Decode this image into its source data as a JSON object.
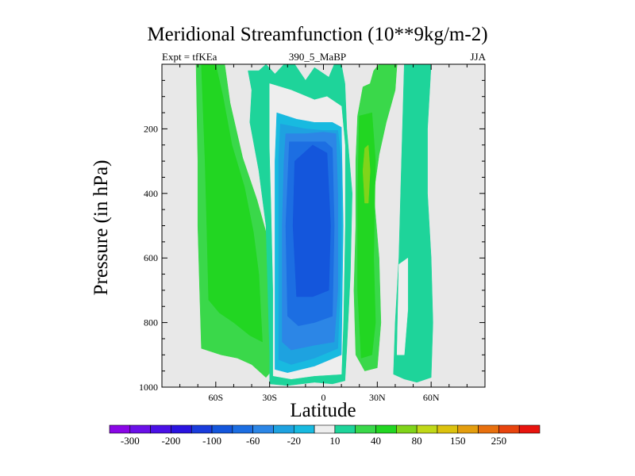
{
  "chart_data": {
    "type": "heatmap",
    "title": "Meridional Streamfunction (10**9kg/m-2)",
    "left_label": "Expt = tfKEa",
    "center_label": "390_5_MaBP",
    "right_label": "JJA",
    "xlabel": "Latitude",
    "ylabel": "Pressure (in hPa)",
    "xlim": [
      -90,
      90
    ],
    "ylim": [
      1000,
      0
    ],
    "x_ticks": [
      -60,
      -30,
      0,
      30,
      60
    ],
    "x_tick_labels": [
      "60S",
      "30S",
      "0",
      "30N",
      "60N"
    ],
    "y_ticks": [
      200,
      400,
      600,
      800,
      1000
    ],
    "y_tick_labels": [
      "200",
      "400",
      "600",
      "800",
      "1000"
    ],
    "missing_color": "#e8e8e8",
    "colorbar": {
      "levels": [
        -350,
        -300,
        -250,
        -200,
        -150,
        -100,
        -80,
        -60,
        -40,
        -20,
        -10,
        10,
        20,
        40,
        60,
        80,
        100,
        150,
        200,
        250
      ],
      "tick_labels": [
        "-300",
        "-200",
        "-100",
        "-60",
        "-20",
        "10",
        "40",
        "80",
        "150",
        "250"
      ],
      "colors": [
        "#8a06e6",
        "#6a10e8",
        "#4a10e6",
        "#2a14e0",
        "#1a3cdc",
        "#1456dc",
        "#1c6ee2",
        "#2c86e6",
        "#1ea2e0",
        "#18bae0",
        "#eeeeee",
        "#1ed49a",
        "#3ad84a",
        "#22d622",
        "#80d41a",
        "#c0d818",
        "#dcc20e",
        "#e49e0e",
        "#e8700e",
        "#e8440e",
        "#e8140e"
      ]
    },
    "regions": [
      {
        "value": 15,
        "polygon": [
          [
            -71,
            0
          ],
          [
            -55,
            0
          ],
          [
            -52,
            120
          ],
          [
            -45,
            290
          ],
          [
            -37,
            420
          ],
          [
            -31,
            540
          ],
          [
            -29,
            660
          ],
          [
            -28,
            800
          ],
          [
            -26,
            930
          ],
          [
            -32,
            970
          ],
          [
            -40,
            930
          ],
          [
            -48,
            910
          ],
          [
            -57,
            900
          ],
          [
            -68,
            880
          ],
          [
            -69,
            700
          ],
          [
            -70,
            500
          ],
          [
            -70,
            300
          ]
        ]
      },
      {
        "value": 30,
        "polygon": [
          [
            -68,
            0
          ],
          [
            -60,
            0
          ],
          [
            -56,
            100
          ],
          [
            -51,
            250
          ],
          [
            -44,
            380
          ],
          [
            -39,
            520
          ],
          [
            -36,
            650
          ],
          [
            -35,
            760
          ],
          [
            -34,
            860
          ],
          [
            -41,
            840
          ],
          [
            -50,
            800
          ],
          [
            -58,
            770
          ],
          [
            -64,
            730
          ],
          [
            -65,
            500
          ],
          [
            -66,
            300
          ]
        ]
      },
      {
        "value": -10,
        "polygon": [
          [
            -42,
            20
          ],
          [
            -36,
            20
          ],
          [
            -32,
            0
          ],
          [
            -27,
            30
          ],
          [
            -22,
            0
          ],
          [
            -16,
            0
          ],
          [
            -10,
            50
          ],
          [
            -5,
            10
          ],
          [
            3,
            40
          ],
          [
            6,
            0
          ],
          [
            10,
            0
          ],
          [
            12,
            60
          ],
          [
            13,
            200
          ],
          [
            16,
            400
          ],
          [
            15,
            650
          ],
          [
            13,
            880
          ],
          [
            12,
            980
          ],
          [
            5,
            990
          ],
          [
            -5,
            985
          ],
          [
            -20,
            995
          ],
          [
            -30,
            990
          ],
          [
            -30,
            900
          ],
          [
            -31,
            700
          ],
          [
            -32,
            500
          ],
          [
            -36,
            330
          ],
          [
            -41,
            180
          ],
          [
            -40,
            80
          ]
        ]
      },
      {
        "value": -20,
        "polygon": [
          [
            -30,
            60
          ],
          [
            -18,
            80
          ],
          [
            -5,
            110
          ],
          [
            2,
            100
          ],
          [
            10,
            130
          ],
          [
            12,
            250
          ],
          [
            12,
            500
          ],
          [
            11,
            800
          ],
          [
            10,
            960
          ],
          [
            -5,
            965
          ],
          [
            -18,
            975
          ],
          [
            -28,
            965
          ],
          [
            -28,
            700
          ],
          [
            -29,
            450
          ],
          [
            -30,
            250
          ]
        ]
      },
      {
        "value": -40,
        "polygon": [
          [
            -26,
            150
          ],
          [
            -15,
            170
          ],
          [
            -5,
            180
          ],
          [
            5,
            180
          ],
          [
            10,
            195
          ],
          [
            11,
            500
          ],
          [
            10,
            900
          ],
          [
            -5,
            935
          ],
          [
            -20,
            955
          ],
          [
            -27,
            945
          ],
          [
            -27,
            600
          ],
          [
            -27,
            300
          ]
        ]
      },
      {
        "value": -60,
        "polygon": [
          [
            -24,
            185
          ],
          [
            -10,
            200
          ],
          [
            0,
            205
          ],
          [
            8,
            205
          ],
          [
            10,
            300
          ],
          [
            10,
            600
          ],
          [
            8,
            880
          ],
          [
            -5,
            910
          ],
          [
            -18,
            930
          ],
          [
            -25,
            915
          ],
          [
            -25,
            600
          ],
          [
            -25,
            300
          ]
        ]
      },
      {
        "value": -80,
        "polygon": [
          [
            -21,
            215
          ],
          [
            -10,
            215
          ],
          [
            0,
            210
          ],
          [
            7,
            215
          ],
          [
            8,
            400
          ],
          [
            8,
            700
          ],
          [
            6,
            860
          ],
          [
            -5,
            870
          ],
          [
            -18,
            885
          ],
          [
            -23,
            860
          ],
          [
            -23,
            500
          ],
          [
            -22,
            300
          ]
        ]
      },
      {
        "value": -100,
        "polygon": [
          [
            -19,
            240
          ],
          [
            -8,
            240
          ],
          [
            1,
            240
          ],
          [
            5,
            260
          ],
          [
            6,
            500
          ],
          [
            5,
            780
          ],
          [
            -5,
            800
          ],
          [
            -14,
            810
          ],
          [
            -20,
            780
          ],
          [
            -21,
            500
          ]
        ]
      },
      {
        "value": -150,
        "polygon": [
          [
            -16,
            300
          ],
          [
            -6,
            250
          ],
          [
            2,
            275
          ],
          [
            4,
            500
          ],
          [
            3,
            700
          ],
          [
            -6,
            720
          ],
          [
            -15,
            720
          ],
          [
            -17,
            500
          ]
        ]
      },
      {
        "value": 15,
        "polygon": [
          [
            22,
            70
          ],
          [
            26,
            60
          ],
          [
            28,
            20
          ],
          [
            31,
            0
          ],
          [
            41,
            0
          ],
          [
            40,
            80
          ],
          [
            35,
            180
          ],
          [
            31,
            280
          ],
          [
            28,
            400
          ],
          [
            31,
            600
          ],
          [
            32,
            800
          ],
          [
            30,
            940
          ],
          [
            23,
            950
          ],
          [
            18,
            900
          ],
          [
            17,
            700
          ],
          [
            18,
            500
          ],
          [
            18,
            300
          ],
          [
            19,
            160
          ]
        ]
      },
      {
        "value": 30,
        "polygon": [
          [
            20,
            160
          ],
          [
            27,
            150
          ],
          [
            29,
            300
          ],
          [
            28,
            600
          ],
          [
            29,
            800
          ],
          [
            27,
            900
          ],
          [
            21,
            910
          ],
          [
            19,
            700
          ],
          [
            19,
            400
          ]
        ]
      },
      {
        "value": 50,
        "polygon": [
          [
            23,
            260
          ],
          [
            25,
            250
          ],
          [
            26,
            330
          ],
          [
            25,
            430
          ],
          [
            23,
            430
          ],
          [
            22,
            330
          ]
        ]
      },
      {
        "value": -10,
        "polygon": [
          [
            45,
            0
          ],
          [
            60,
            0
          ],
          [
            58,
            200
          ],
          [
            58,
            400
          ],
          [
            60,
            600
          ],
          [
            61,
            800
          ],
          [
            60,
            970
          ],
          [
            52,
            985
          ],
          [
            45,
            975
          ],
          [
            39,
            960
          ],
          [
            40,
            800
          ],
          [
            42,
            600
          ],
          [
            43,
            400
          ],
          [
            44,
            200
          ]
        ]
      },
      {
        "value": -20,
        "polygon": [
          [
            42,
            620
          ],
          [
            47,
            600
          ],
          [
            47,
            760
          ],
          [
            45,
            900
          ],
          [
            41,
            900
          ]
        ]
      }
    ]
  }
}
